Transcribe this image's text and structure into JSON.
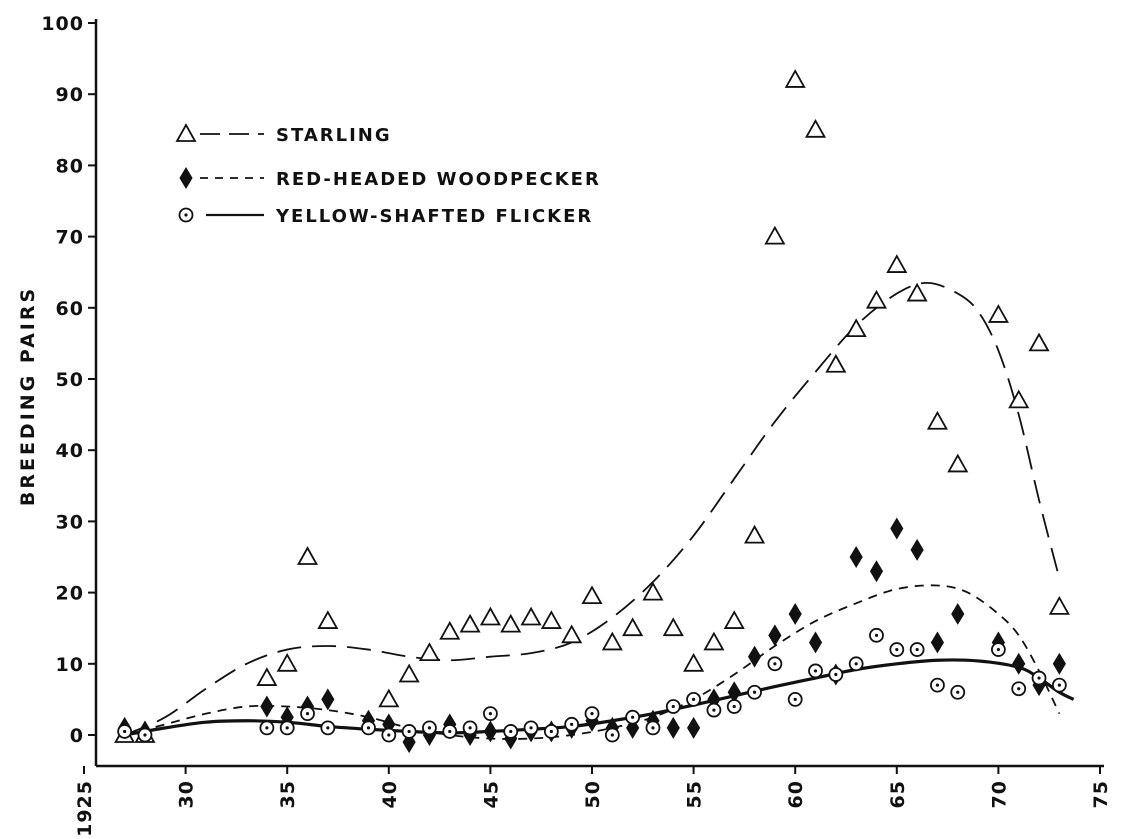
{
  "chart_data": {
    "type": "scatter",
    "title": "",
    "xlabel": "",
    "ylabel": "BREEDING PAIRS",
    "xlim": [
      1925,
      1975
    ],
    "ylim": [
      0,
      100
    ],
    "x_ticks": [
      1925,
      1930,
      1935,
      1940,
      1945,
      1950,
      1955,
      1960,
      1965,
      1970,
      1975
    ],
    "x_tick_labels": [
      "1925",
      "30",
      "35",
      "40",
      "45",
      "50",
      "55",
      "60",
      "65",
      "70",
      "75"
    ],
    "y_ticks": [
      0,
      10,
      20,
      30,
      40,
      50,
      60,
      70,
      80,
      90,
      100
    ],
    "y_tick_labels": [
      "0",
      "10",
      "20",
      "30",
      "40",
      "50",
      "60",
      "70",
      "80",
      "90",
      "100"
    ],
    "grid": false,
    "legend_position": "upper-left",
    "series": [
      {
        "name": "STARLING",
        "marker": "open-triangle",
        "line_style": "long-dash",
        "points": [
          [
            1927,
            0
          ],
          [
            1928,
            0
          ],
          [
            1934,
            8
          ],
          [
            1935,
            10
          ],
          [
            1936,
            25
          ],
          [
            1937,
            16
          ],
          [
            1940,
            5
          ],
          [
            1941,
            8.5
          ],
          [
            1942,
            11.5
          ],
          [
            1943,
            14.5
          ],
          [
            1944,
            15.5
          ],
          [
            1945,
            16.5
          ],
          [
            1946,
            15.5
          ],
          [
            1947,
            16.5
          ],
          [
            1948,
            16
          ],
          [
            1949,
            14
          ],
          [
            1950,
            19.5
          ],
          [
            1951,
            13
          ],
          [
            1952,
            15
          ],
          [
            1953,
            20
          ],
          [
            1954,
            15
          ],
          [
            1955,
            10
          ],
          [
            1956,
            13
          ],
          [
            1957,
            16
          ],
          [
            1958,
            28
          ],
          [
            1959,
            70
          ],
          [
            1960,
            92
          ],
          [
            1961,
            85
          ],
          [
            1962,
            52
          ],
          [
            1963,
            57
          ],
          [
            1964,
            61
          ],
          [
            1965,
            66
          ],
          [
            1966,
            62
          ],
          [
            1967,
            44
          ],
          [
            1968,
            38
          ],
          [
            1970,
            59
          ],
          [
            1971,
            47
          ],
          [
            1972,
            55
          ],
          [
            1973,
            18
          ]
        ],
        "trend": [
          [
            1927,
            0
          ],
          [
            1929,
            2.5
          ],
          [
            1931,
            6.5
          ],
          [
            1933,
            10
          ],
          [
            1935,
            12
          ],
          [
            1937,
            12.5
          ],
          [
            1939,
            12
          ],
          [
            1941,
            11
          ],
          [
            1943,
            10.5
          ],
          [
            1945,
            11
          ],
          [
            1947,
            11.5
          ],
          [
            1949,
            13
          ],
          [
            1951,
            16.5
          ],
          [
            1953,
            21.5
          ],
          [
            1955,
            28
          ],
          [
            1957,
            36
          ],
          [
            1959,
            44
          ],
          [
            1961,
            51
          ],
          [
            1963,
            57.5
          ],
          [
            1965,
            62
          ],
          [
            1966.5,
            63.5
          ],
          [
            1968,
            62
          ],
          [
            1969,
            59.5
          ],
          [
            1970,
            54
          ],
          [
            1971,
            45
          ],
          [
            1972,
            33
          ],
          [
            1973,
            22
          ]
        ]
      },
      {
        "name": "RED-HEADED WOODPECKER",
        "marker": "filled-diamond",
        "line_style": "short-dash",
        "points": [
          [
            1927,
            1
          ],
          [
            1928,
            0.5
          ],
          [
            1934,
            4
          ],
          [
            1935,
            2.5
          ],
          [
            1936,
            4
          ],
          [
            1937,
            5
          ],
          [
            1939,
            2
          ],
          [
            1940,
            1.5
          ],
          [
            1941,
            -1
          ],
          [
            1942,
            0
          ],
          [
            1943,
            1.5
          ],
          [
            1944,
            0
          ],
          [
            1945,
            0.5
          ],
          [
            1946,
            -0.5
          ],
          [
            1947,
            0.5
          ],
          [
            1948,
            0.5
          ],
          [
            1949,
            1
          ],
          [
            1950,
            2
          ],
          [
            1951,
            1
          ],
          [
            1952,
            1
          ],
          [
            1953,
            2
          ],
          [
            1954,
            1
          ],
          [
            1955,
            1
          ],
          [
            1956,
            5
          ],
          [
            1957,
            6
          ],
          [
            1958,
            11
          ],
          [
            1959,
            14
          ],
          [
            1960,
            17
          ],
          [
            1961,
            13
          ],
          [
            1962,
            8.5
          ],
          [
            1963,
            25
          ],
          [
            1964,
            23
          ],
          [
            1965,
            29
          ],
          [
            1966,
            26
          ],
          [
            1967,
            13
          ],
          [
            1968,
            17
          ],
          [
            1970,
            13
          ],
          [
            1971,
            10
          ],
          [
            1972,
            7
          ],
          [
            1973,
            10
          ]
        ],
        "trend": [
          [
            1927,
            0
          ],
          [
            1929,
            1.5
          ],
          [
            1931,
            3
          ],
          [
            1933,
            4
          ],
          [
            1935,
            4
          ],
          [
            1937,
            3.5
          ],
          [
            1939,
            2.5
          ],
          [
            1941,
            1
          ],
          [
            1943,
            0
          ],
          [
            1945,
            -0.5
          ],
          [
            1947,
            -0.5
          ],
          [
            1949,
            0
          ],
          [
            1951,
            1
          ],
          [
            1953,
            2.5
          ],
          [
            1955,
            5
          ],
          [
            1957,
            8.5
          ],
          [
            1959,
            12.5
          ],
          [
            1961,
            16
          ],
          [
            1963,
            18.5
          ],
          [
            1965,
            20.5
          ],
          [
            1967,
            21
          ],
          [
            1968.5,
            20
          ],
          [
            1970,
            17
          ],
          [
            1971,
            14
          ],
          [
            1972,
            9
          ],
          [
            1973,
            3
          ]
        ]
      },
      {
        "name": "YELLOW-SHAFTED FLICKER",
        "marker": "dotted-circle",
        "line_style": "solid",
        "points": [
          [
            1927,
            0.5
          ],
          [
            1928,
            0
          ],
          [
            1934,
            1
          ],
          [
            1935,
            1
          ],
          [
            1936,
            3
          ],
          [
            1937,
            1
          ],
          [
            1939,
            1
          ],
          [
            1940,
            0
          ],
          [
            1941,
            0.5
          ],
          [
            1942,
            1
          ],
          [
            1943,
            0.5
          ],
          [
            1944,
            1
          ],
          [
            1945,
            3
          ],
          [
            1946,
            0.5
          ],
          [
            1947,
            1
          ],
          [
            1948,
            0.5
          ],
          [
            1949,
            1.5
          ],
          [
            1950,
            3
          ],
          [
            1951,
            0
          ],
          [
            1952,
            2.5
          ],
          [
            1953,
            1
          ],
          [
            1954,
            4
          ],
          [
            1955,
            5
          ],
          [
            1956,
            3.5
          ],
          [
            1957,
            4
          ],
          [
            1958,
            6
          ],
          [
            1959,
            10
          ],
          [
            1960,
            5
          ],
          [
            1961,
            9
          ],
          [
            1962,
            8.5
          ],
          [
            1963,
            10
          ],
          [
            1964,
            14
          ],
          [
            1965,
            12
          ],
          [
            1966,
            12
          ],
          [
            1967,
            7
          ],
          [
            1968,
            6
          ],
          [
            1970,
            12
          ],
          [
            1971,
            6.5
          ],
          [
            1972,
            8
          ],
          [
            1973,
            7
          ]
        ],
        "trend": [
          [
            1927,
            0
          ],
          [
            1929,
            1
          ],
          [
            1931,
            1.8
          ],
          [
            1933,
            2
          ],
          [
            1935,
            1.8
          ],
          [
            1937,
            1.2
          ],
          [
            1939,
            0.8
          ],
          [
            1941,
            0.5
          ],
          [
            1943,
            0.3
          ],
          [
            1945,
            0.5
          ],
          [
            1947,
            0.8
          ],
          [
            1949,
            1.2
          ],
          [
            1951,
            2
          ],
          [
            1953,
            3
          ],
          [
            1955,
            4.2
          ],
          [
            1957,
            5.5
          ],
          [
            1959,
            6.8
          ],
          [
            1961,
            8
          ],
          [
            1963,
            9.2
          ],
          [
            1965,
            10
          ],
          [
            1967,
            10.5
          ],
          [
            1969,
            10.4
          ],
          [
            1971,
            9.5
          ],
          [
            1972,
            8
          ],
          [
            1973,
            6
          ],
          [
            1973.7,
            5
          ]
        ]
      }
    ]
  }
}
